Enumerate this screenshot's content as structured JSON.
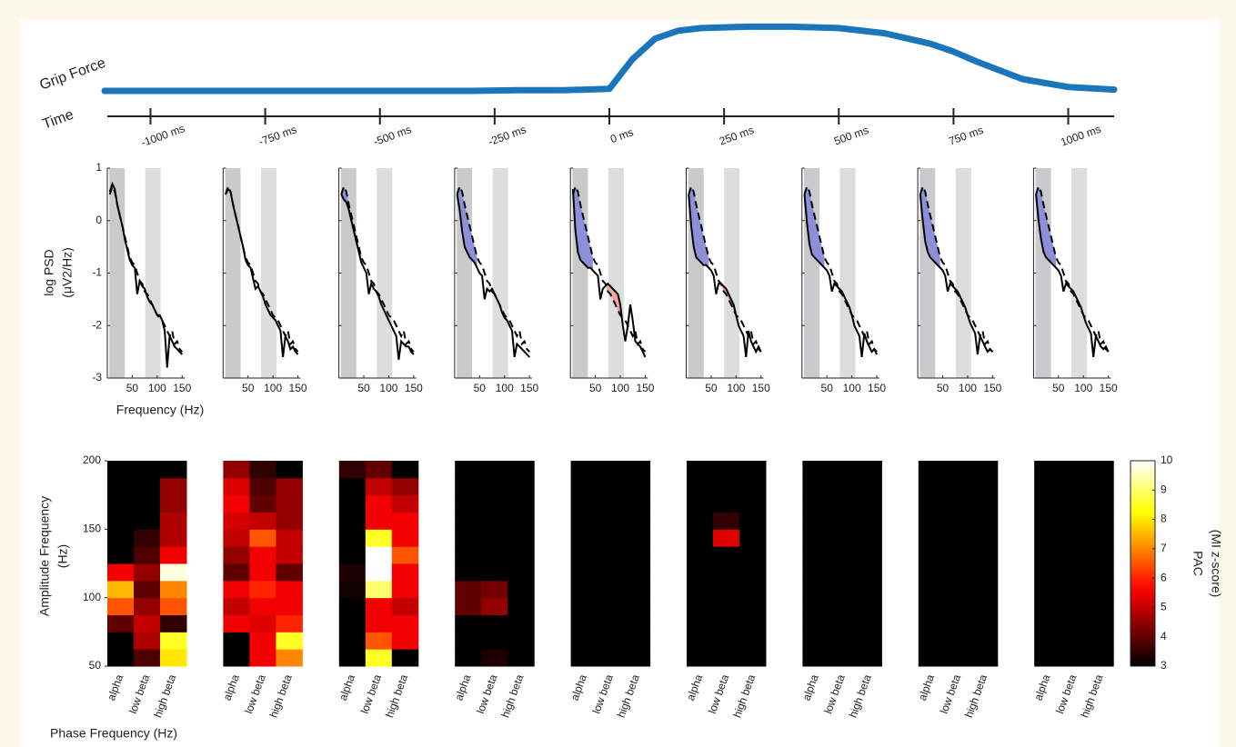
{
  "chart_data": [
    {
      "type": "line",
      "ylabel": "Grip Force",
      "xlabel": "Time",
      "color": "#1b75bb",
      "x": [
        -1100,
        -1000,
        -900,
        -800,
        -700,
        -600,
        -500,
        -400,
        -300,
        -200,
        -100,
        0,
        50,
        100,
        150,
        200,
        300,
        400,
        500,
        600,
        700,
        750,
        800,
        900,
        1000,
        1100
      ],
      "values": [
        0,
        0,
        0,
        0,
        0,
        0,
        0,
        0,
        0,
        0.01,
        0.01,
        0.03,
        0.48,
        0.8,
        0.92,
        0.96,
        0.98,
        0.98,
        0.96,
        0.88,
        0.72,
        0.6,
        0.45,
        0.18,
        0.06,
        0.02
      ],
      "xlim": [
        -1100,
        1100
      ],
      "ylim": [
        0,
        1
      ],
      "xticks": [
        {
          "value": -1000,
          "label": "-1000 ms"
        },
        {
          "value": -750,
          "label": "-750 ms"
        },
        {
          "value": -500,
          "label": "-500 ms"
        },
        {
          "value": -250,
          "label": "-250 ms"
        },
        {
          "value": 0,
          "label": "0 ms"
        },
        {
          "value": 250,
          "label": "250 ms"
        },
        {
          "value": 500,
          "label": "500 ms"
        },
        {
          "value": 750,
          "label": "750 ms"
        },
        {
          "value": 1000,
          "label": "1000 ms"
        }
      ]
    },
    {
      "type": "psd",
      "ylabel": [
        "log PSD",
        "(μV2/Hz)"
      ],
      "xlabel": "Frequency (Hz)",
      "x": [
        5,
        10,
        15,
        20,
        25,
        30,
        35,
        40,
        45,
        50,
        55,
        60,
        65,
        70,
        75,
        80,
        85,
        90,
        95,
        100,
        105,
        110,
        115,
        120,
        125,
        130,
        135,
        140,
        145,
        150
      ],
      "baseline": [
        0.5,
        0.65,
        0.55,
        0.3,
        0.1,
        -0.1,
        -0.3,
        -0.5,
        -0.7,
        -0.8,
        -0.85,
        -1.0,
        -1.15,
        -1.2,
        -1.35,
        -1.4,
        -1.5,
        -1.6,
        -1.7,
        -1.8,
        -1.85,
        -1.9,
        -2.0,
        -2.1,
        -2.2,
        -2.1,
        -2.35,
        -2.3,
        -2.45,
        -2.5
      ],
      "panels": [
        {
          "values": [
            0.55,
            0.7,
            0.6,
            0.3,
            0.1,
            -0.1,
            -0.35,
            -0.55,
            -0.75,
            -0.85,
            -0.9,
            -1.4,
            -1.15,
            -1.25,
            -1.3,
            -1.45,
            -1.55,
            -1.6,
            -1.7,
            -1.8,
            -1.8,
            -1.9,
            -2.1,
            -2.8,
            -2.2,
            -2.3,
            -2.4,
            -2.45,
            -2.5,
            -2.55
          ]
        },
        {
          "values": [
            0.5,
            0.6,
            0.55,
            0.3,
            0.1,
            -0.1,
            -0.3,
            -0.5,
            -0.75,
            -0.85,
            -0.9,
            -1.1,
            -1.3,
            -1.25,
            -1.35,
            -1.45,
            -1.6,
            -1.7,
            -1.8,
            -1.85,
            -1.9,
            -2.0,
            -2.1,
            -2.6,
            -2.2,
            -2.3,
            -2.45,
            -2.4,
            -2.5,
            -2.55
          ]
        },
        {
          "values": [
            0.5,
            0.4,
            0.35,
            0.2,
            0.0,
            -0.2,
            -0.4,
            -0.6,
            -0.8,
            -0.9,
            -1.0,
            -1.4,
            -1.2,
            -1.3,
            -1.35,
            -1.45,
            -1.6,
            -1.7,
            -1.8,
            -1.9,
            -2.0,
            -2.1,
            -2.2,
            -2.65,
            -2.3,
            -2.35,
            -2.4,
            -2.4,
            -2.5,
            -2.55
          ]
        },
        {
          "values": [
            0.5,
            0.2,
            -0.2,
            -0.5,
            -0.6,
            -0.7,
            -0.75,
            -0.8,
            -0.9,
            -1.0,
            -1.05,
            -1.5,
            -1.3,
            -1.35,
            -1.3,
            -1.4,
            -1.5,
            -1.6,
            -1.75,
            -1.85,
            -1.9,
            -2.0,
            -2.1,
            -2.6,
            -2.35,
            -2.4,
            -2.45,
            -2.5,
            -2.55,
            -2.6
          ]
        },
        {
          "values": [
            0.6,
            -0.2,
            -0.6,
            -0.75,
            -0.8,
            -0.85,
            -0.9,
            -0.9,
            -0.95,
            -1.0,
            -1.05,
            -1.5,
            -1.3,
            -1.25,
            -1.2,
            -1.25,
            -1.3,
            -1.35,
            -1.4,
            -1.6,
            -2.0,
            -2.3,
            -2.0,
            -1.6,
            -1.9,
            -2.3,
            -2.35,
            -2.4,
            -2.5,
            -2.6
          ]
        },
        {
          "values": [
            0.5,
            -0.1,
            -0.5,
            -0.7,
            -0.75,
            -0.8,
            -0.85,
            -0.85,
            -0.9,
            -0.95,
            -1.05,
            -1.4,
            -1.2,
            -1.2,
            -1.25,
            -1.3,
            -1.4,
            -1.5,
            -1.6,
            -1.8,
            -2.0,
            -2.1,
            -2.2,
            -2.6,
            -2.1,
            -2.3,
            -2.4,
            -2.5,
            -2.4,
            -2.5
          ]
        },
        {
          "values": [
            0.5,
            -0.05,
            -0.45,
            -0.65,
            -0.7,
            -0.75,
            -0.8,
            -0.85,
            -0.9,
            -0.95,
            -1.05,
            -1.35,
            -1.2,
            -1.25,
            -1.3,
            -1.35,
            -1.45,
            -1.55,
            -1.65,
            -1.8,
            -2.0,
            -2.1,
            -2.2,
            -2.6,
            -2.15,
            -2.3,
            -2.4,
            -2.5,
            -2.45,
            -2.55
          ]
        },
        {
          "values": [
            0.5,
            0.0,
            -0.4,
            -0.6,
            -0.7,
            -0.75,
            -0.8,
            -0.85,
            -0.9,
            -0.95,
            -1.05,
            -1.35,
            -1.2,
            -1.25,
            -1.3,
            -1.35,
            -1.45,
            -1.55,
            -1.65,
            -1.8,
            -1.95,
            -2.05,
            -2.15,
            -2.55,
            -2.2,
            -2.3,
            -2.4,
            -2.5,
            -2.45,
            -2.5
          ]
        },
        {
          "values": [
            0.5,
            0.0,
            -0.35,
            -0.6,
            -0.7,
            -0.75,
            -0.8,
            -0.85,
            -0.9,
            -0.95,
            -1.05,
            -1.35,
            -1.2,
            -1.25,
            -1.3,
            -1.35,
            -1.45,
            -1.55,
            -1.65,
            -1.8,
            -1.95,
            -2.05,
            -2.15,
            -2.6,
            -2.2,
            -2.3,
            -2.4,
            -2.45,
            -2.4,
            -2.5
          ]
        }
      ],
      "color": "#000000",
      "baseline_color": "#000000",
      "xlim": [
        0,
        155
      ],
      "ylim": [
        -3,
        1
      ],
      "xticks": [
        50,
        100,
        150
      ],
      "yticks": [
        1,
        0,
        -1,
        -2,
        -3
      ],
      "bands": [
        {
          "range": [
            4,
            35
          ],
          "color": "#c9cacb"
        },
        {
          "range": [
            76,
            107
          ],
          "color": "#dcdddd"
        }
      ],
      "fills": [
        {
          "range": [
            5,
            45
          ],
          "color": "#8d90d8",
          "side": "below"
        },
        {
          "range": [
            65,
            110
          ],
          "color": "#f2a0a0",
          "side": "above"
        }
      ]
    },
    {
      "type": "heatmap",
      "ylabel": [
        "Amplitude Frequency",
        "(Hz)"
      ],
      "xlabel": "Phase Frequency (Hz)",
      "zlabel": [
        "PAC",
        "(MI z-score)"
      ],
      "categories": [
        "alpha",
        "low beta",
        "high beta"
      ],
      "ylim": [
        50,
        200
      ],
      "yticks": [
        50,
        100,
        150,
        200
      ],
      "zlim": [
        3,
        10
      ],
      "zticks": [
        3,
        4,
        5,
        6,
        7,
        8,
        9,
        10
      ],
      "panels": [
        {
          "values": [
            [
              3,
              3,
              4,
              6.5,
              7.5,
              5.5,
              3,
              3,
              3,
              3,
              3,
              3
            ],
            [
              3.8,
              4.8,
              5,
              4.5,
              4,
              4.5,
              3.8,
              3.5,
              3,
              3,
              3,
              3
            ],
            [
              8,
              8.5,
              3.5,
              6.5,
              7,
              9.8,
              5.5,
              4.8,
              4.8,
              4.5,
              4.5,
              3
            ]
          ]
        },
        {
          "values": [
            [
              3,
              3,
              5.5,
              5,
              5.5,
              4,
              4.5,
              5,
              5.2,
              5.5,
              5.3,
              4.5
            ],
            [
              5.5,
              5.5,
              5.3,
              5.5,
              6,
              5.5,
              5.5,
              6.5,
              5,
              4,
              3.8,
              3.5
            ],
            [
              7,
              8.5,
              6,
              5.5,
              5.5,
              4,
              5,
              5,
              4.5,
              4.5,
              4.5,
              3
            ]
          ]
        },
        {
          "values": [
            [
              3,
              3,
              3,
              3,
              3.2,
              3.3,
              3,
              3,
              3,
              3,
              3,
              3.5
            ],
            [
              8.5,
              6.5,
              5.5,
              5.5,
              9,
              10,
              10,
              8.5,
              5.5,
              5.5,
              5,
              4
            ],
            [
              3,
              5.5,
              5.5,
              5,
              5.5,
              5.5,
              6.5,
              5.5,
              5.5,
              5,
              4.5,
              3
            ]
          ]
        },
        {
          "values": [
            [
              3,
              3,
              3,
              4,
              4,
              3,
              3,
              3,
              3,
              3,
              3,
              3
            ],
            [
              3.3,
              3,
              3,
              4.5,
              4.2,
              3,
              3,
              3,
              3,
              3,
              3,
              3
            ],
            [
              3,
              3,
              3,
              3,
              3,
              3,
              3,
              3,
              3,
              3,
              3,
              3
            ]
          ]
        },
        {
          "values": [
            [
              3,
              3,
              3,
              3,
              3,
              3,
              3,
              3,
              3,
              3,
              3,
              3
            ],
            [
              3,
              3,
              3,
              3,
              3,
              3,
              3,
              3,
              3,
              3,
              3,
              3
            ],
            [
              3,
              3,
              3,
              3,
              3,
              3,
              3,
              3,
              3,
              3,
              3,
              3
            ]
          ]
        },
        {
          "values": [
            [
              3,
              3,
              3,
              3,
              3,
              3,
              3,
              3,
              3,
              3,
              3,
              3
            ],
            [
              3,
              3,
              3,
              3,
              3,
              3,
              3,
              5.3,
              3.5,
              3,
              3,
              3
            ],
            [
              3,
              3,
              3,
              3,
              3,
              3,
              3,
              3,
              3,
              3,
              3,
              3
            ]
          ]
        },
        {
          "values": [
            [
              3,
              3,
              3,
              3,
              3,
              3,
              3,
              3,
              3,
              3,
              3,
              3
            ],
            [
              3,
              3,
              3,
              3,
              3,
              3,
              3,
              3,
              3,
              3,
              3,
              3
            ],
            [
              3,
              3,
              3,
              3,
              3,
              3,
              3,
              3,
              3,
              3,
              3,
              3
            ]
          ]
        },
        {
          "values": [
            [
              3,
              3,
              3,
              3,
              3,
              3,
              3,
              3,
              3,
              3,
              3,
              3
            ],
            [
              3,
              3,
              3,
              3,
              3,
              3,
              3,
              3,
              3,
              3,
              3,
              3
            ],
            [
              3,
              3,
              3,
              3,
              3,
              3,
              3,
              3,
              3,
              3,
              3,
              3
            ]
          ]
        },
        {
          "values": [
            [
              3,
              3,
              3,
              3,
              3,
              3,
              3,
              3,
              3,
              3,
              3,
              3
            ],
            [
              3,
              3,
              3,
              3,
              3,
              3,
              3,
              3,
              3,
              3,
              3,
              3
            ],
            [
              3,
              3,
              3,
              3,
              3,
              3,
              3,
              3,
              3,
              3,
              3,
              3
            ]
          ]
        }
      ]
    }
  ]
}
